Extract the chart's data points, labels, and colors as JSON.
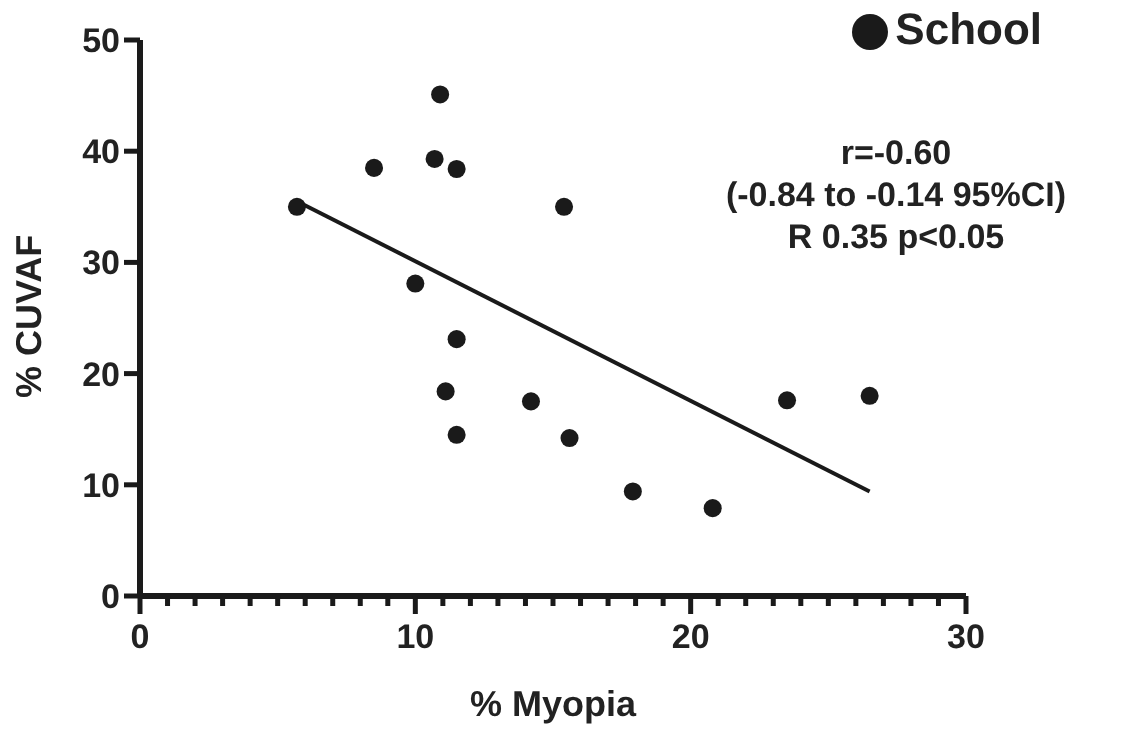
{
  "chart_data": {
    "type": "scatter",
    "xlabel": "% Myopia",
    "ylabel": "% CUVAF",
    "xlim": [
      0,
      30
    ],
    "ylim": [
      0,
      50
    ],
    "xticks": [
      0,
      {
        "value": 1,
        "label": null
      },
      {
        "value": 2,
        "label": null
      },
      {
        "value": 3,
        "label": null
      },
      {
        "value": 4,
        "label": null
      },
      {
        "value": 5,
        "label": null
      },
      {
        "value": 6,
        "label": null
      },
      {
        "value": 7,
        "label": null
      },
      {
        "value": 8,
        "label": null
      },
      {
        "value": 9,
        "label": null
      },
      10,
      {
        "value": 11,
        "label": null
      },
      {
        "value": 12,
        "label": null
      },
      {
        "value": 13,
        "label": null
      },
      {
        "value": 14,
        "label": null
      },
      {
        "value": 15,
        "label": null
      },
      {
        "value": 16,
        "label": null
      },
      {
        "value": 17,
        "label": null
      },
      {
        "value": 18,
        "label": null
      },
      {
        "value": 19,
        "label": null
      },
      20,
      {
        "value": 21,
        "label": null
      },
      {
        "value": 22,
        "label": null
      },
      {
        "value": 23,
        "label": null
      },
      {
        "value": 24,
        "label": null
      },
      {
        "value": 25,
        "label": null
      },
      {
        "value": 26,
        "label": null
      },
      {
        "value": 27,
        "label": null
      },
      {
        "value": 28,
        "label": null
      },
      {
        "value": 29,
        "label": null
      },
      30
    ],
    "yticks": [
      0,
      10,
      20,
      30,
      40,
      50
    ],
    "series": [
      {
        "name": "School",
        "color": "#1a1a1a",
        "marker": "circle",
        "x": [
          5.7,
          8.5,
          10.9,
          10.7,
          11.5,
          15.4,
          10.0,
          11.5,
          11.1,
          11.5,
          14.2,
          15.6,
          17.9,
          20.8,
          23.5,
          26.5
        ],
        "values": [
          35.0,
          38.5,
          45.1,
          39.3,
          38.4,
          35.0,
          28.1,
          23.1,
          18.4,
          14.5,
          17.5,
          14.2,
          9.4,
          7.9,
          17.6,
          18.0
        ]
      },
      {
        "type": "line",
        "color": "#1a1a1a",
        "marker": "none",
        "x": [
          5.7,
          26.5
        ],
        "values": [
          35.5,
          9.4
        ]
      }
    ],
    "annotations": [
      "r=-0.60",
      "(-0.84 to -0.14 95%CI)",
      "R 0.35 p<0.05"
    ],
    "legend": "top right",
    "grid": false
  }
}
